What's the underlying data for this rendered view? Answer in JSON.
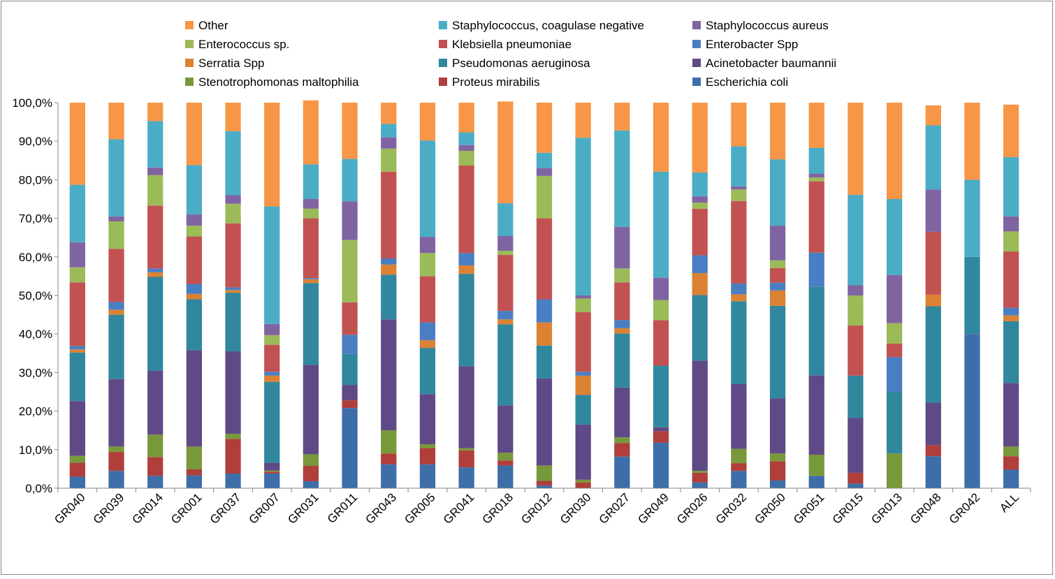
{
  "chart_data": {
    "type": "bar",
    "stacked": true,
    "percent": true,
    "title": "",
    "xlabel": "",
    "ylabel": "",
    "ylim": [
      0,
      100
    ],
    "yticks": [
      "0,0%",
      "10,0%",
      "20,0%",
      "30,0%",
      "40,0%",
      "50,0%",
      "60,0%",
      "70,0%",
      "80,0%",
      "90,0%",
      "100,0%"
    ],
    "grid": false,
    "legend_position": "top",
    "categories": [
      "GR040",
      "GR039",
      "GR014",
      "GR001",
      "GR037",
      "GR007",
      "GR031",
      "GR011",
      "GR043",
      "GR005",
      "GR041",
      "GR018",
      "GR012",
      "GR030",
      "GR027",
      "GR049",
      "GR026",
      "GR032",
      "GR050",
      "GR051",
      "GR015",
      "GR013",
      "GR048",
      "GR042",
      "ALL"
    ],
    "legend_order": [
      "Other",
      "Staphylococcus, coagulase negative",
      "Staphylococcus aureus",
      "Enterococcus sp.",
      "Klebsiella pneumoniae",
      "Enterobacter Spp",
      "Serratia Spp",
      "Pseudomonas aeruginosa",
      "Acinetobacter baumannii",
      "Stenotrophomonas maltophilia",
      "Proteus mirabilis",
      "Escherichia coli"
    ],
    "series": [
      {
        "name": "Escherichia coli",
        "color": "#3d6ea9",
        "values": [
          3.0,
          4.5,
          3.2,
          3.3,
          3.8,
          3.8,
          1.8,
          20.8,
          6.2,
          6.2,
          5.4,
          5.9,
          0.7,
          0.0,
          8.2,
          11.8,
          1.5,
          4.5,
          2.0,
          3.2,
          1.2,
          0.0,
          8.3,
          40.0,
          4.8
        ]
      },
      {
        "name": "Proteus mirabilis",
        "color": "#b03e3b",
        "values": [
          3.6,
          4.9,
          4.9,
          1.6,
          9.0,
          0.5,
          4.0,
          2.0,
          2.8,
          4.2,
          4.4,
          1.3,
          1.2,
          1.5,
          3.5,
          3.0,
          2.5,
          2.0,
          5.0,
          0.0,
          2.8,
          0.0,
          2.9,
          0.0,
          3.5
        ]
      },
      {
        "name": "Stenotrophomonas maltophilia",
        "color": "#78993a",
        "values": [
          1.8,
          1.4,
          5.8,
          5.9,
          1.3,
          0.3,
          3.0,
          0.0,
          6.0,
          1.0,
          0.6,
          2.0,
          4.0,
          0.7,
          1.5,
          0.0,
          0.5,
          3.7,
          2.0,
          5.5,
          0.0,
          9.0,
          0.0,
          0.0,
          2.5
        ]
      },
      {
        "name": "Acinetobacter baumannii",
        "color": "#5f4986",
        "values": [
          14.2,
          17.5,
          16.6,
          25.0,
          21.4,
          2.0,
          23.2,
          4.0,
          28.8,
          13.0,
          21.2,
          12.3,
          22.6,
          14.3,
          12.9,
          1.0,
          28.6,
          16.8,
          14.3,
          20.6,
          14.2,
          0.0,
          11.0,
          0.0,
          16.5
        ]
      },
      {
        "name": "Pseudomonas aeruginosa",
        "color": "#31879e",
        "values": [
          12.6,
          16.7,
          24.3,
          13.2,
          15.2,
          21.0,
          21.2,
          8.0,
          11.6,
          12.0,
          24.0,
          21.0,
          8.5,
          7.7,
          14.0,
          16.0,
          17.0,
          21.5,
          24.0,
          23.0,
          11.0,
          16.0,
          25.0,
          20.0,
          16.0
        ]
      },
      {
        "name": "Serratia Spp",
        "color": "#db8233",
        "values": [
          0.8,
          1.3,
          1.2,
          1.4,
          0.7,
          1.6,
          1.0,
          0.0,
          2.6,
          2.0,
          2.2,
          1.3,
          6.0,
          5.0,
          1.4,
          0.0,
          5.7,
          1.8,
          4.0,
          0.0,
          0.0,
          0.0,
          3.0,
          0.0,
          1.5
        ]
      },
      {
        "name": "Enterobacter Spp",
        "color": "#4a7ec3",
        "values": [
          0.9,
          2.0,
          1.0,
          2.6,
          0.7,
          1.0,
          0.3,
          5.0,
          1.6,
          4.6,
          3.2,
          2.2,
          6.0,
          1.0,
          2.1,
          0.0,
          4.6,
          2.8,
          2.0,
          8.8,
          0.0,
          9.0,
          0.0,
          0.0,
          2.0
        ]
      },
      {
        "name": "Klebsiella pneumoniae",
        "color": "#c25251",
        "values": [
          16.5,
          13.8,
          16.3,
          12.3,
          16.6,
          7.0,
          15.5,
          8.4,
          22.5,
          12.0,
          22.7,
          14.5,
          21.0,
          15.5,
          9.8,
          11.8,
          12.1,
          21.4,
          3.8,
          18.5,
          13.0,
          3.5,
          16.3,
          0.0,
          14.6
        ]
      },
      {
        "name": "Enterococcus sp.",
        "color": "#9bbb59",
        "values": [
          3.9,
          7.1,
          7.9,
          2.8,
          5.1,
          2.5,
          2.5,
          16.2,
          6.0,
          6.0,
          3.8,
          1.1,
          11.0,
          3.5,
          3.6,
          5.2,
          1.6,
          3.0,
          2.0,
          1.0,
          7.8,
          5.3,
          0.0,
          0.0,
          5.2
        ]
      },
      {
        "name": "Staphylococcus aureus",
        "color": "#8064a2",
        "values": [
          6.5,
          1.3,
          2.0,
          2.9,
          2.2,
          2.9,
          2.5,
          10.0,
          2.9,
          4.2,
          1.5,
          3.8,
          2.0,
          0.8,
          10.8,
          5.8,
          1.6,
          0.8,
          9.0,
          1.0,
          2.7,
          12.5,
          11.0,
          0.0,
          3.9
        ]
      },
      {
        "name": "Staphylococcus, coagulase negative",
        "color": "#4bacc6",
        "values": [
          14.9,
          20.0,
          12.0,
          12.8,
          16.6,
          30.5,
          9.0,
          11.0,
          3.5,
          25.0,
          3.3,
          8.5,
          4.0,
          40.9,
          25.0,
          27.5,
          6.2,
          10.4,
          17.2,
          6.7,
          23.4,
          19.7,
          16.6,
          20.0,
          15.4
        ]
      },
      {
        "name": "Other",
        "color": "#f79646",
        "values": [
          21.3,
          9.5,
          4.8,
          16.2,
          7.4,
          26.9,
          16.6,
          14.6,
          5.5,
          9.8,
          7.7,
          26.4,
          13.0,
          9.1,
          7.2,
          17.9,
          18.1,
          11.3,
          14.7,
          11.7,
          23.9,
          25.0,
          5.2,
          20.0,
          13.6
        ]
      }
    ]
  }
}
